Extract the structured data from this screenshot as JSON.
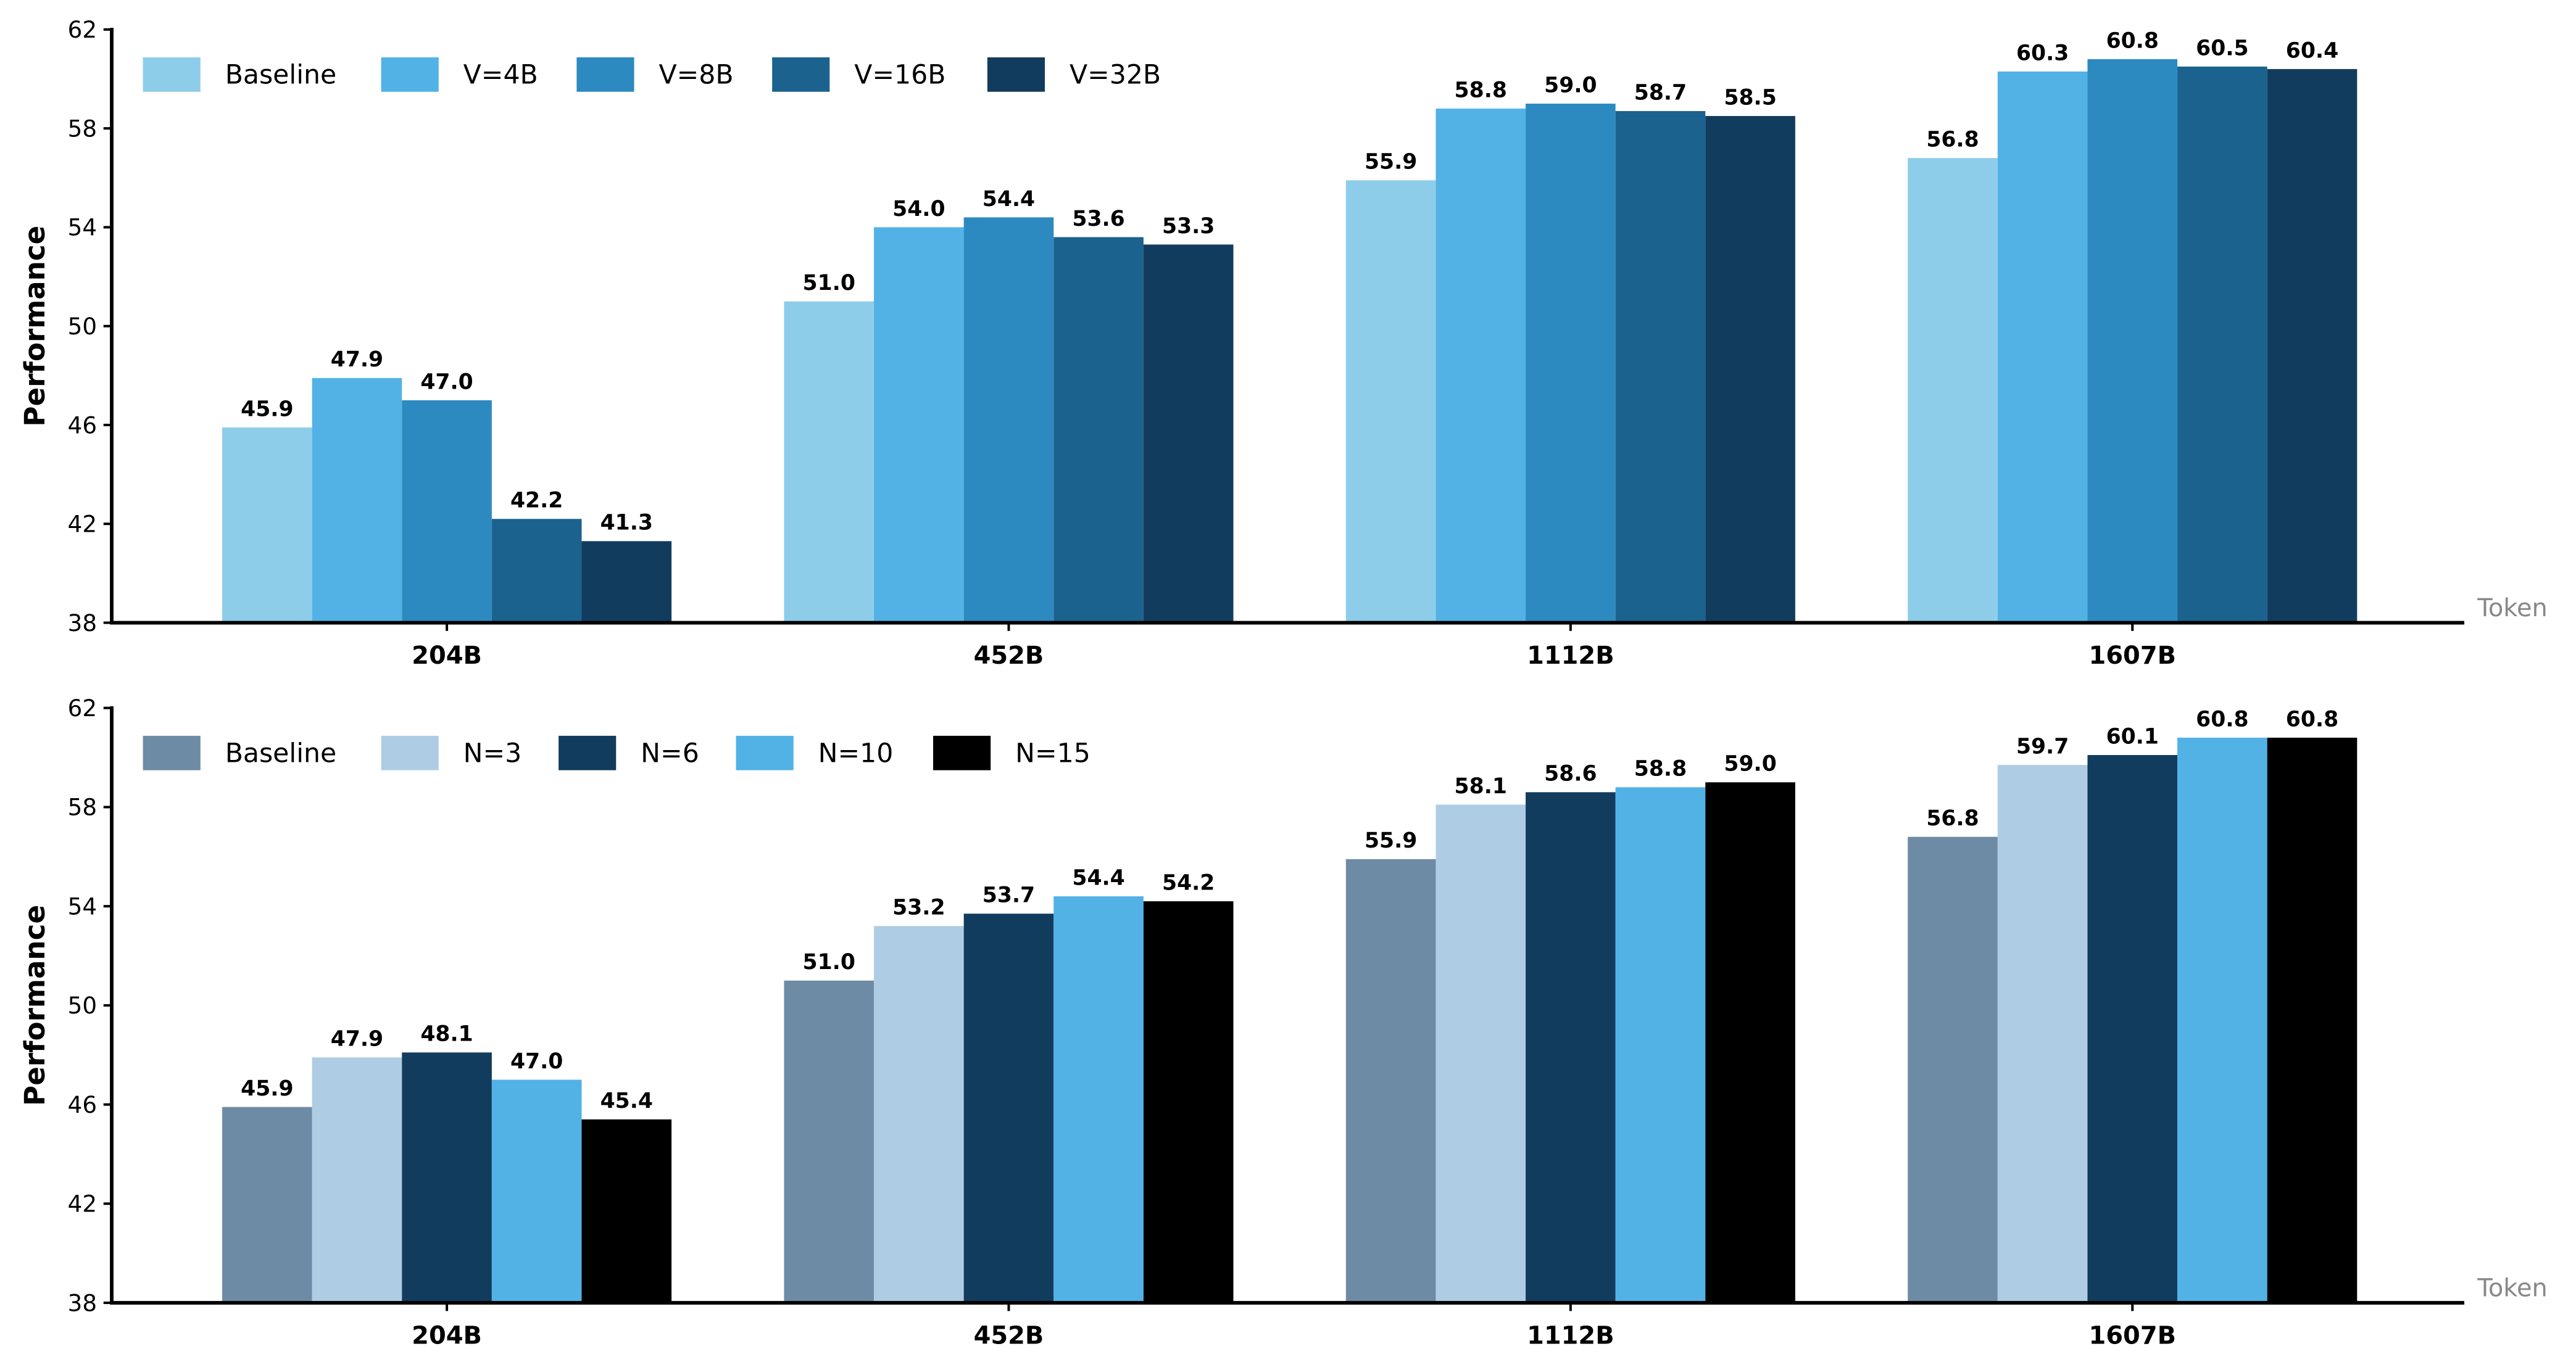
{
  "chart_data": [
    {
      "type": "bar",
      "title": "",
      "xlabel": "Token",
      "ylabel": "Performance",
      "ylim": [
        38,
        62
      ],
      "yticks": [
        38,
        42,
        46,
        50,
        54,
        58,
        62
      ],
      "legend": "top-left",
      "grid": false,
      "categories": [
        "204B",
        "452B",
        "1112B",
        "1607B"
      ],
      "series": [
        {
          "name": "Baseline",
          "color": "#8ecde9",
          "values": [
            45.9,
            51.0,
            55.9,
            56.8
          ]
        },
        {
          "name": "V=4B",
          "color": "#52b2e6",
          "values": [
            47.9,
            54.0,
            58.8,
            60.3
          ]
        },
        {
          "name": "V=8B",
          "color": "#2d8ac1",
          "values": [
            47.0,
            54.4,
            59.0,
            60.8
          ]
        },
        {
          "name": "V=16B",
          "color": "#1b628e",
          "values": [
            42.2,
            53.6,
            58.7,
            60.5
          ]
        },
        {
          "name": "V=32B",
          "color": "#123c5e",
          "values": [
            41.3,
            53.3,
            58.5,
            60.4
          ]
        }
      ]
    },
    {
      "type": "bar",
      "title": "",
      "xlabel": "Token",
      "ylabel": "Performance",
      "ylim": [
        38,
        62
      ],
      "yticks": [
        38,
        42,
        46,
        50,
        54,
        58,
        62
      ],
      "legend": "top-left",
      "grid": false,
      "categories": [
        "204B",
        "452B",
        "1112B",
        "1607B"
      ],
      "series": [
        {
          "name": "Baseline",
          "color": "#6e8ba5",
          "values": [
            45.9,
            51.0,
            55.9,
            56.8
          ]
        },
        {
          "name": "N=3",
          "color": "#aecde4",
          "values": [
            47.9,
            53.2,
            58.1,
            59.7
          ]
        },
        {
          "name": "N=6",
          "color": "#123c5e",
          "values": [
            48.1,
            53.7,
            58.6,
            60.1
          ]
        },
        {
          "name": "N=10",
          "color": "#52b2e6",
          "values": [
            47.0,
            54.4,
            58.8,
            60.8
          ]
        },
        {
          "name": "N=15",
          "color": "#000000",
          "values": [
            45.4,
            54.2,
            59.0,
            60.8
          ]
        }
      ]
    }
  ]
}
